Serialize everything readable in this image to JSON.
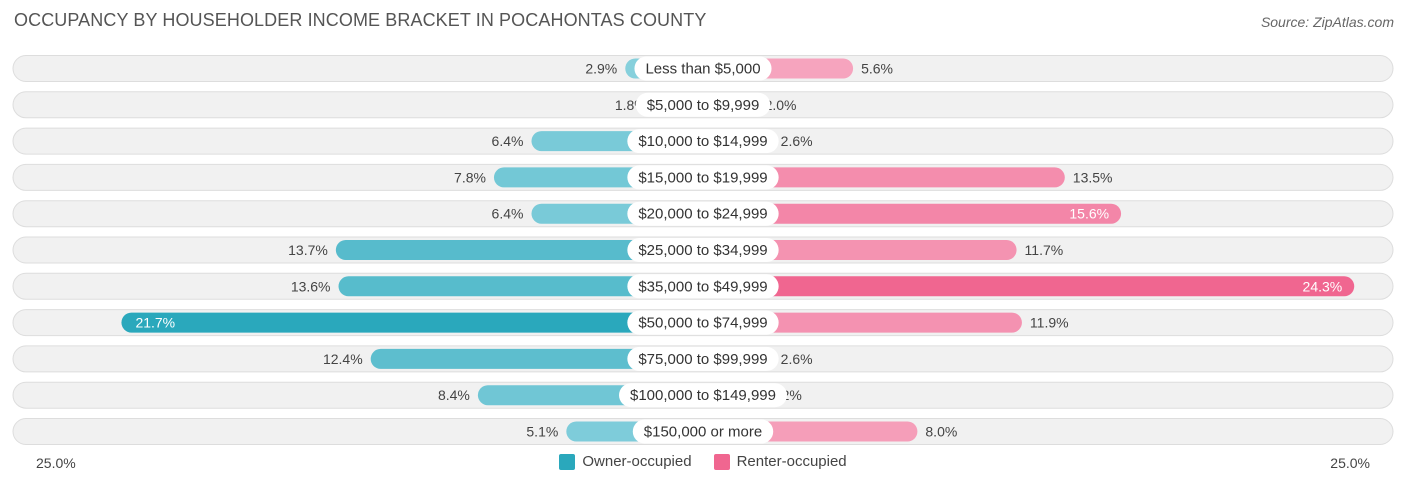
{
  "title": "OCCUPANCY BY HOUSEHOLDER INCOME BRACKET IN POCAHONTAS COUNTY",
  "source": "Source: ZipAtlas.com",
  "colors": {
    "owner_dark": "#2aa8bc",
    "owner_light": "#8dd3df",
    "renter_dark": "#f06690",
    "renter_light": "#f7afc6",
    "row_bg": "#f1f1f1",
    "row_border": "#dddddd"
  },
  "chart_data": {
    "type": "bar",
    "orientation": "horizontal-diverging",
    "categories": [
      "Less than $5,000",
      "$5,000 to $9,999",
      "$10,000 to $14,999",
      "$15,000 to $19,999",
      "$20,000 to $24,999",
      "$25,000 to $34,999",
      "$35,000 to $49,999",
      "$50,000 to $74,999",
      "$75,000 to $99,999",
      "$100,000 to $149,999",
      "$150,000 or more"
    ],
    "series": [
      {
        "name": "Owner-occupied",
        "values": [
          2.9,
          1.8,
          6.4,
          7.8,
          6.4,
          13.7,
          13.6,
          21.7,
          12.4,
          8.4,
          5.1
        ],
        "labels": [
          "2.9%",
          "1.8%",
          "6.4%",
          "7.8%",
          "6.4%",
          "13.7%",
          "13.6%",
          "21.7%",
          "12.4%",
          "8.4%",
          "5.1%"
        ]
      },
      {
        "name": "Renter-occupied",
        "values": [
          5.6,
          2.0,
          2.6,
          13.5,
          15.6,
          11.7,
          24.3,
          11.9,
          2.6,
          2.2,
          8.0
        ],
        "labels": [
          "5.6%",
          "2.0%",
          "2.6%",
          "13.5%",
          "15.6%",
          "11.7%",
          "24.3%",
          "11.9%",
          "2.6%",
          "2.2%",
          "8.0%"
        ]
      }
    ],
    "xlim": [
      -25,
      25
    ],
    "axis_left_label": "25.0%",
    "axis_right_label": "25.0%",
    "legend_position": "bottom-center"
  }
}
